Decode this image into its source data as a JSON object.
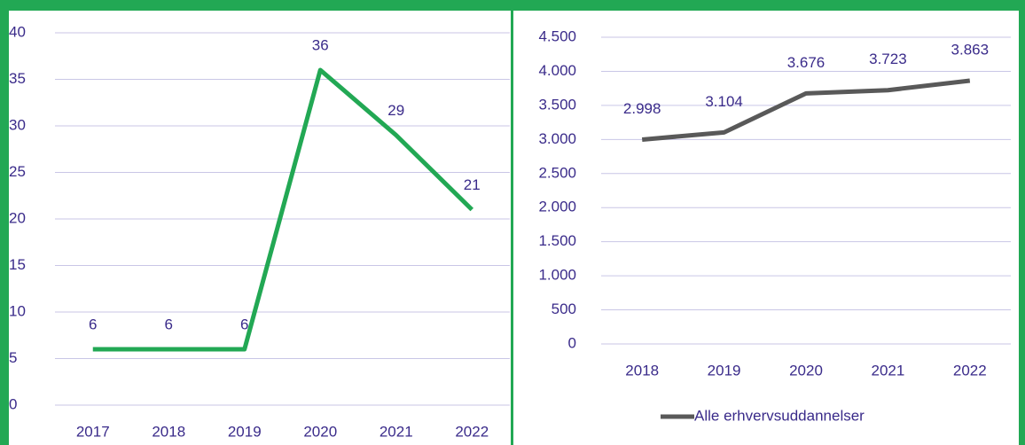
{
  "chart_data": [
    {
      "type": "line",
      "categories": [
        "2017",
        "2018",
        "2019",
        "2020",
        "2021",
        "2022"
      ],
      "series": [
        {
          "color": "#22a854",
          "values": [
            6,
            6,
            6,
            36,
            29,
            21
          ]
        }
      ],
      "ylim": [
        0,
        40
      ],
      "yticks": [
        0,
        5,
        10,
        15,
        20,
        25,
        30,
        35,
        40
      ],
      "grid": true,
      "data_labels": true
    },
    {
      "type": "line",
      "categories": [
        "2018",
        "2019",
        "2020",
        "2021",
        "2022"
      ],
      "series": [
        {
          "name": "Alle erhvervsuddannelser",
          "color": "#595959",
          "values": [
            2998,
            3104,
            3676,
            3723,
            3863
          ],
          "value_labels": [
            "2.998",
            "3.104",
            "3.676",
            "3.723",
            "3.863"
          ]
        }
      ],
      "ylim": [
        0,
        4500
      ],
      "yticks": [
        0,
        500,
        {
          "value": 1000,
          "label": "1.000"
        },
        {
          "value": 1500,
          "label": "1.500"
        },
        {
          "value": 2000,
          "label": "2.000"
        },
        {
          "value": 2500,
          "label": "2.500"
        },
        {
          "value": 3000,
          "label": "3.000"
        },
        {
          "value": 3500,
          "label": "3.500"
        },
        {
          "value": 4000,
          "label": "4.000"
        },
        {
          "value": 4500,
          "label": "4.500"
        }
      ],
      "grid": true,
      "data_labels": true,
      "legend": "bottom"
    }
  ]
}
